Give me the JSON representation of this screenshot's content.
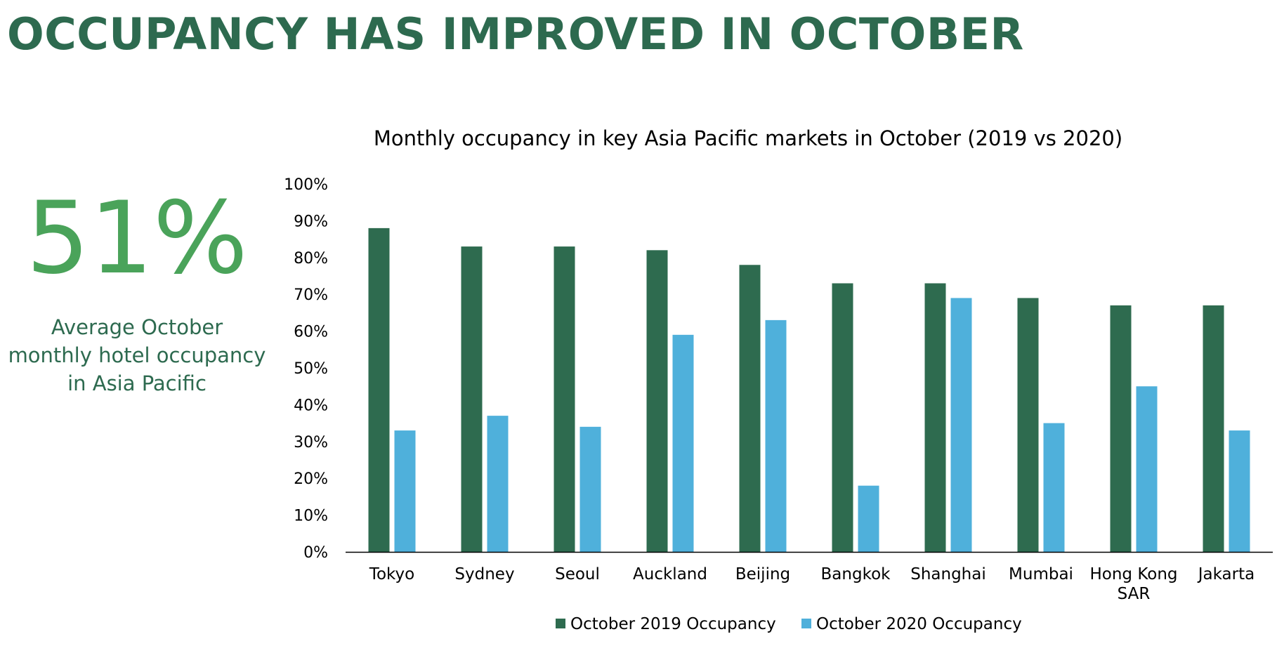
{
  "header": {
    "title": "OCCUPANCY HAS IMPROVED IN OCTOBER"
  },
  "kpi": {
    "value": "51%",
    "caption_lines": [
      "Average October",
      "monthly hotel occupancy",
      "in Asia Pacific"
    ]
  },
  "colors": {
    "title": "#2d6a4f",
    "kpi_value": "#4aa35a",
    "series_2019": "#2e6b4f",
    "series_2020": "#4fb0db",
    "axis": "#000000"
  },
  "chart_data": {
    "type": "bar",
    "title": "Monthly occupancy in key Asia Pacific markets in October (2019 vs 2020)",
    "categories": [
      [
        "Tokyo"
      ],
      [
        "Sydney"
      ],
      [
        "Seoul"
      ],
      [
        "Auckland"
      ],
      [
        "Beijing"
      ],
      [
        "Bangkok"
      ],
      [
        "Shanghai"
      ],
      [
        "Mumbai"
      ],
      [
        "Hong Kong",
        "SAR"
      ],
      [
        "Jakarta"
      ]
    ],
    "series": [
      {
        "name": "October 2019 Occupancy",
        "values": [
          88,
          83,
          83,
          82,
          78,
          73,
          73,
          69,
          67,
          67
        ]
      },
      {
        "name": "October 2020 Occupancy",
        "values": [
          33,
          37,
          34,
          59,
          63,
          18,
          69,
          35,
          45,
          33
        ]
      }
    ],
    "ylim": [
      0,
      100
    ],
    "yticks": [
      0,
      10,
      20,
      30,
      40,
      50,
      60,
      70,
      80,
      90,
      100
    ],
    "ytick_labels": [
      "0%",
      "10%",
      "20%",
      "30%",
      "40%",
      "50%",
      "60%",
      "70%",
      "80%",
      "90%",
      "100%"
    ],
    "xlabel": "",
    "ylabel": "",
    "grid": false,
    "legend": "bottom"
  }
}
